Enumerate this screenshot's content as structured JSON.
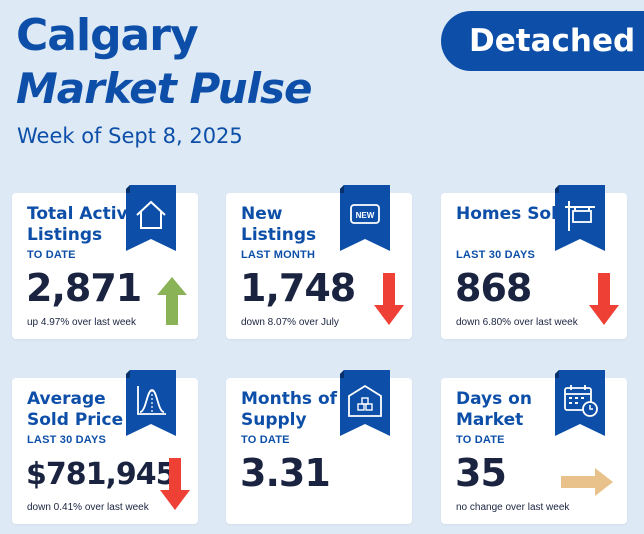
{
  "header": {
    "title_line1": "Calgary",
    "title_line2": "Market Pulse",
    "subtitle": "Week of Sept 8, 2025",
    "badge": "Detached"
  },
  "colors": {
    "background": "#dde9f5",
    "brand_blue": "#0d4fa8",
    "arrow_up": "#8ab256",
    "arrow_down": "#ef4035",
    "arrow_flat": "#e8c28a"
  },
  "cards": [
    {
      "label": "Total Active Listings",
      "period": "TO DATE",
      "value": "2,871",
      "change": "up 4.97% over last week",
      "icon": "house-icon",
      "trend": "up"
    },
    {
      "label": "New Listings",
      "period": "LAST MONTH",
      "value": "1,748",
      "change": "down 8.07% over July",
      "icon": "new-tag-icon",
      "icon_text": "NEW",
      "trend": "down"
    },
    {
      "label": "Homes Sold",
      "period": "LAST 30 DAYS",
      "value": "868",
      "change": "down 6.80% over last week",
      "icon": "sold-sign-icon",
      "trend": "down"
    },
    {
      "label": "Average Sold Price",
      "period": "LAST 30 DAYS",
      "value": "$781,945",
      "change": "down 0.41% over last week",
      "icon": "distribution-chart-icon",
      "trend": "down"
    },
    {
      "label": "Months of Supply",
      "period": "TO DATE",
      "value": "3.31",
      "change": "",
      "icon": "warehouse-icon",
      "trend": "none"
    },
    {
      "label": "Days on Market",
      "period": "TO DATE",
      "value": "35",
      "change": "no change over last week",
      "icon": "calendar-clock-icon",
      "trend": "flat"
    }
  ]
}
